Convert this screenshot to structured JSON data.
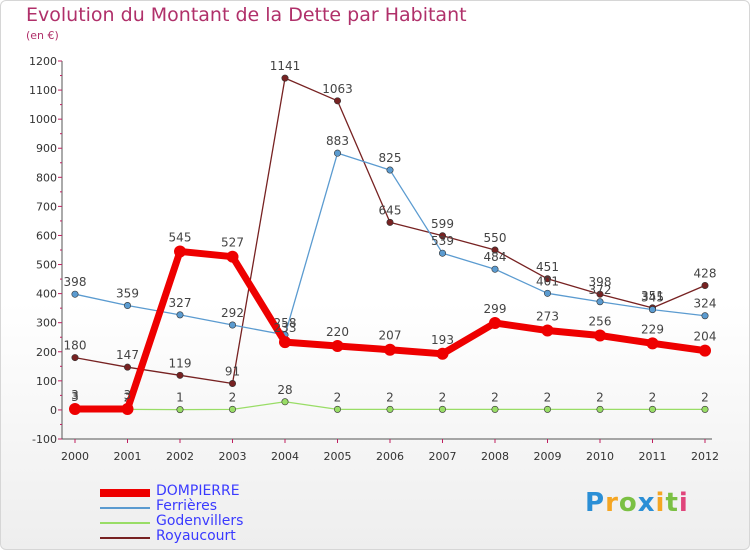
{
  "chart_data": {
    "type": "line",
    "title": "Evolution du Montant de la Dette par Habitant",
    "subtitle": "(en €)",
    "xlabel": "",
    "ylabel": "",
    "categories": [
      "2000",
      "2001",
      "2002",
      "2003",
      "2004",
      "2005",
      "2006",
      "2007",
      "2008",
      "2009",
      "2010",
      "2011",
      "2012"
    ],
    "ylim": [
      -100,
      1200
    ],
    "yticks": [
      -100,
      0,
      100,
      200,
      300,
      400,
      500,
      600,
      700,
      800,
      900,
      1000,
      1100,
      1200
    ],
    "grid": false,
    "legend_position": "bottom-left",
    "series": [
      {
        "name": "DOMPIERRE",
        "color": "#ee0000",
        "values": [
          3,
          3,
          545,
          527,
          233,
          220,
          207,
          193,
          299,
          273,
          256,
          229,
          204
        ]
      },
      {
        "name": "Ferrières",
        "color": "#5b9bd0",
        "values": [
          398,
          359,
          327,
          292,
          258,
          883,
          825,
          539,
          484,
          401,
          372,
          345,
          324
        ]
      },
      {
        "name": "Godenvillers",
        "color": "#99dd66",
        "values": [
          3,
          2,
          1,
          2,
          28,
          2,
          2,
          2,
          2,
          2,
          2,
          2,
          2
        ]
      },
      {
        "name": "Royaucourt",
        "color": "#772222",
        "values": [
          180,
          147,
          119,
          91,
          1141,
          1063,
          645,
          599,
          550,
          451,
          398,
          351,
          428
        ]
      }
    ]
  },
  "logo": {
    "letters": [
      "P",
      "r",
      "o",
      "x",
      "i",
      "t",
      "i"
    ],
    "colors": [
      "#2b8fd6",
      "#f5a623",
      "#7bc043",
      "#2b8fd6",
      "#f5a623",
      "#7bc043",
      "#e0457b"
    ]
  }
}
